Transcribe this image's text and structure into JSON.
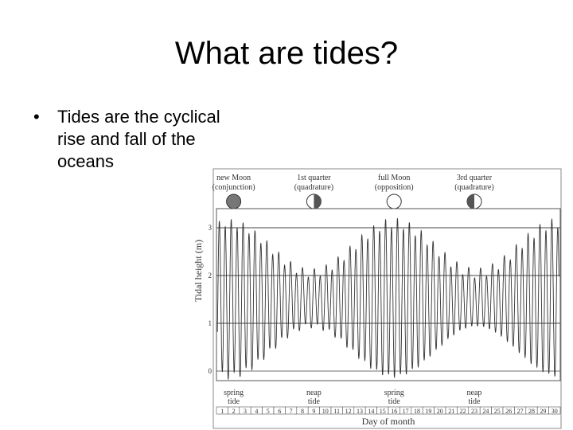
{
  "slide": {
    "title": "What are tides?",
    "bullet_symbol": "•",
    "bullet_lines": [
      "Tides are the cyclical",
      "rise and fall of the",
      "oceans"
    ]
  },
  "chart_data": {
    "type": "line",
    "title": "",
    "xlabel": "Day of month",
    "ylabel": "Tidal height (m)",
    "xlim": [
      1,
      30
    ],
    "ylim": [
      0,
      3
    ],
    "yticks": [
      0,
      1,
      2,
      3
    ],
    "xticks": [
      1,
      2,
      3,
      4,
      5,
      6,
      7,
      8,
      9,
      10,
      11,
      12,
      13,
      14,
      15,
      16,
      17,
      18,
      19,
      20,
      21,
      22,
      23,
      24,
      25,
      26,
      27,
      28,
      29,
      30
    ],
    "grid": true,
    "moon_phases": [
      {
        "label": "new Moon",
        "sublabel": "(conjunction)",
        "day": 2,
        "fill": "dark"
      },
      {
        "label": "1st quarter",
        "sublabel": "(quadrature)",
        "day": 9,
        "fill": "half"
      },
      {
        "label": "full Moon",
        "sublabel": "(opposition)",
        "day": 16,
        "fill": "light"
      },
      {
        "label": "3rd quarter",
        "sublabel": "(quadrature)",
        "day": 23,
        "fill": "half"
      }
    ],
    "tide_labels": [
      {
        "line1": "spring",
        "line2": "tide",
        "day": 2
      },
      {
        "line1": "neap",
        "line2": "tide",
        "day": 9
      },
      {
        "line1": "spring",
        "line2": "tide",
        "day": 16
      },
      {
        "line1": "neap",
        "line2": "tide",
        "day": 23
      }
    ],
    "series": [
      {
        "mean": 1.5,
        "spring_amplitude": 1.6,
        "neap_amplitude": 0.55,
        "cycles_per_day": 1.93
      }
    ],
    "colors": {
      "line": "#333333",
      "grid": "#444444",
      "moon_dark": "#777777"
    }
  }
}
